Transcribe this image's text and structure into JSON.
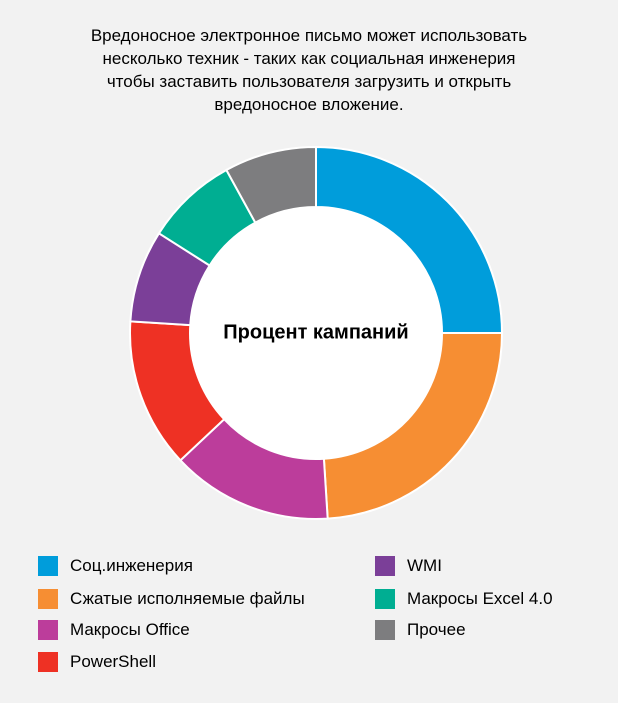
{
  "caption": {
    "lines": [
      "Вредоносное электронное письмо может использовать",
      "несколько техник - таких как социальная инженерия",
      "чтобы заставить пользователя загрузить и открыть",
      "вредоносное вложение."
    ]
  },
  "chart_data": {
    "type": "pie",
    "variant": "donut",
    "center_label": "Процент кампаний",
    "categories": [
      "Соц.инженерия",
      "Сжатые исполняемые файлы",
      "Макросы Office",
      "PowerShell",
      "WMI",
      "Макросы Excel 4.0",
      "Прочее"
    ],
    "values": [
      25,
      24,
      14,
      13,
      8,
      8,
      8
    ],
    "colors": [
      "#009ddb",
      "#f68e33",
      "#bc3d9b",
      "#ee3124",
      "#7b3f98",
      "#00ae92",
      "#7d7d7f"
    ],
    "legend_position": "bottom"
  }
}
